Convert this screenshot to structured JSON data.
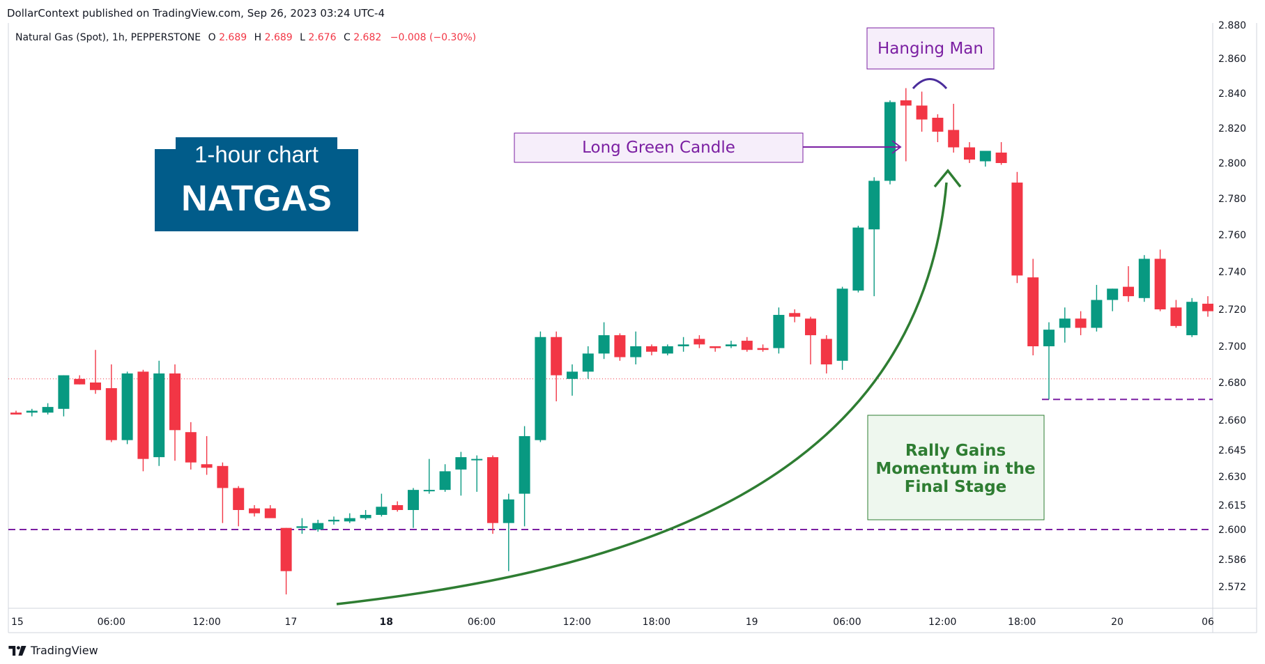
{
  "header": {
    "published": "DollarContext published on TradingView.com, Sep 26, 2023 03:24 UTC-4"
  },
  "legend": {
    "symbol": "Natural Gas (Spot), 1h, PEPPERSTONE",
    "o_label": "O",
    "o_value": "2.689",
    "h_label": "H",
    "h_value": "2.689",
    "l_label": "L",
    "l_value": "2.676",
    "c_label": "C",
    "c_value": "2.682",
    "change": "−0.008 (−0.30%)"
  },
  "title_box": {
    "line1": "1-hour chart",
    "line2": "NATGAS"
  },
  "annotations": {
    "hanging_man": "Hanging Man",
    "long_green": "Long Green Candle",
    "rally": [
      "Rally Gains",
      "Momentum in the",
      "Final Stage"
    ]
  },
  "footer": {
    "brand": "TradingView"
  },
  "colors": {
    "up": "#089981",
    "down": "#f23645",
    "title_bg": "#015c8a",
    "purple": "#7b1fa2",
    "green_note": "#2e7d32",
    "purple_box_bg": "#f6eefa"
  },
  "chart_data": {
    "type": "candlestick",
    "symbol": "Natural Gas (Spot)",
    "interval": "1h",
    "y_ticks": [
      "2.880",
      "2.860",
      "2.840",
      "2.820",
      "2.800",
      "2.780",
      "2.760",
      "2.740",
      "2.720",
      "2.700",
      "2.680",
      "2.660",
      "2.645",
      "2.630",
      "2.615",
      "2.600",
      "2.586",
      "2.572"
    ],
    "x_ticks": [
      {
        "label": "15",
        "bold": false,
        "bar": 0
      },
      {
        "label": "06:00",
        "bold": false,
        "bar": 6
      },
      {
        "label": "12:00",
        "bold": false,
        "bar": 12
      },
      {
        "label": "17",
        "bold": false,
        "bar": 17.3
      },
      {
        "label": "18",
        "bold": true,
        "bar": 23.3
      },
      {
        "label": "06:00",
        "bold": false,
        "bar": 29.3
      },
      {
        "label": "12:00",
        "bold": false,
        "bar": 35.3
      },
      {
        "label": "18:00",
        "bold": false,
        "bar": 40.3
      },
      {
        "label": "19",
        "bold": false,
        "bar": 46.3
      },
      {
        "label": "06:00",
        "bold": false,
        "bar": 52.3
      },
      {
        "label": "12:00",
        "bold": false,
        "bar": 58.3
      },
      {
        "label": "18:00",
        "bold": false,
        "bar": 63.3
      },
      {
        "label": "20",
        "bold": false,
        "bar": 69.3
      },
      {
        "label": "06",
        "bold": false,
        "bar": 75
      }
    ],
    "current_price": 2.682,
    "support_levels": [
      2.6,
      2.671
    ],
    "candles": [
      {
        "o": 2.664,
        "h": 2.665,
        "l": 2.663,
        "c": 2.663
      },
      {
        "o": 2.664,
        "h": 2.666,
        "l": 2.662,
        "c": 2.665
      },
      {
        "o": 2.664,
        "h": 2.669,
        "l": 2.663,
        "c": 2.667
      },
      {
        "o": 2.666,
        "h": 2.684,
        "l": 2.662,
        "c": 2.684
      },
      {
        "o": 2.682,
        "h": 2.684,
        "l": 2.679,
        "c": 2.679
      },
      {
        "o": 2.68,
        "h": 2.698,
        "l": 2.674,
        "c": 2.676
      },
      {
        "o": 2.677,
        "h": 2.69,
        "l": 2.649,
        "c": 2.65
      },
      {
        "o": 2.65,
        "h": 2.686,
        "l": 2.648,
        "c": 2.685
      },
      {
        "o": 2.686,
        "h": 2.687,
        "l": 2.633,
        "c": 2.64
      },
      {
        "o": 2.641,
        "h": 2.692,
        "l": 2.636,
        "c": 2.685
      },
      {
        "o": 2.685,
        "h": 2.69,
        "l": 2.639,
        "c": 2.655
      },
      {
        "o": 2.654,
        "h": 2.659,
        "l": 2.634,
        "c": 2.638
      },
      {
        "o": 2.637,
        "h": 2.652,
        "l": 2.631,
        "c": 2.635
      },
      {
        "o": 2.636,
        "h": 2.638,
        "l": 2.604,
        "c": 2.624
      },
      {
        "o": 2.624,
        "h": 2.625,
        "l": 2.602,
        "c": 2.612
      },
      {
        "o": 2.613,
        "h": 2.615,
        "l": 2.608,
        "c": 2.61
      },
      {
        "o": 2.613,
        "h": 2.615,
        "l": 2.608,
        "c": 2.607
      },
      {
        "o": 2.601,
        "h": 2.601,
        "l": 2.568,
        "c": 2.58
      },
      {
        "o": 2.601,
        "h": 2.607,
        "l": 2.598,
        "c": 2.602
      },
      {
        "o": 2.6,
        "h": 2.606,
        "l": 2.599,
        "c": 2.604
      },
      {
        "o": 2.605,
        "h": 2.608,
        "l": 2.603,
        "c": 2.606
      },
      {
        "o": 2.605,
        "h": 2.61,
        "l": 2.604,
        "c": 2.607
      },
      {
        "o": 2.607,
        "h": 2.612,
        "l": 2.606,
        "c": 2.609
      },
      {
        "o": 2.609,
        "h": 2.621,
        "l": 2.608,
        "c": 2.614
      },
      {
        "o": 2.615,
        "h": 2.617,
        "l": 2.611,
        "c": 2.612
      },
      {
        "o": 2.612,
        "h": 2.624,
        "l": 2.601,
        "c": 2.623
      },
      {
        "o": 2.623,
        "h": 2.64,
        "l": 2.621,
        "c": 2.623
      },
      {
        "o": 2.623,
        "h": 2.637,
        "l": 2.622,
        "c": 2.633
      },
      {
        "o": 2.634,
        "h": 2.644,
        "l": 2.62,
        "c": 2.641
      },
      {
        "o": 2.64,
        "h": 2.642,
        "l": 2.622,
        "c": 2.64
      },
      {
        "o": 2.641,
        "h": 2.642,
        "l": 2.598,
        "c": 2.604
      },
      {
        "o": 2.604,
        "h": 2.621,
        "l": 2.58,
        "c": 2.618
      },
      {
        "o": 2.621,
        "h": 2.657,
        "l": 2.602,
        "c": 2.652
      },
      {
        "o": 2.65,
        "h": 2.708,
        "l": 2.649,
        "c": 2.705
      },
      {
        "o": 2.705,
        "h": 2.708,
        "l": 2.67,
        "c": 2.684
      },
      {
        "o": 2.682,
        "h": 2.69,
        "l": 2.673,
        "c": 2.686
      },
      {
        "o": 2.686,
        "h": 2.7,
        "l": 2.682,
        "c": 2.696
      },
      {
        "o": 2.696,
        "h": 2.713,
        "l": 2.693,
        "c": 2.706
      },
      {
        "o": 2.706,
        "h": 2.707,
        "l": 2.692,
        "c": 2.694
      },
      {
        "o": 2.694,
        "h": 2.708,
        "l": 2.69,
        "c": 2.7
      },
      {
        "o": 2.7,
        "h": 2.701,
        "l": 2.695,
        "c": 2.697
      },
      {
        "o": 2.696,
        "h": 2.701,
        "l": 2.695,
        "c": 2.7
      },
      {
        "o": 2.7,
        "h": 2.705,
        "l": 2.697,
        "c": 2.701
      },
      {
        "o": 2.704,
        "h": 2.706,
        "l": 2.699,
        "c": 2.701
      },
      {
        "o": 2.7,
        "h": 2.7,
        "l": 2.697,
        "c": 2.699
      },
      {
        "o": 2.7,
        "h": 2.703,
        "l": 2.699,
        "c": 2.701
      },
      {
        "o": 2.703,
        "h": 2.705,
        "l": 2.697,
        "c": 2.698
      },
      {
        "o": 2.699,
        "h": 2.701,
        "l": 2.697,
        "c": 2.698
      },
      {
        "o": 2.699,
        "h": 2.721,
        "l": 2.696,
        "c": 2.717
      },
      {
        "o": 2.718,
        "h": 2.72,
        "l": 2.713,
        "c": 2.716
      },
      {
        "o": 2.715,
        "h": 2.716,
        "l": 2.69,
        "c": 2.706
      },
      {
        "o": 2.704,
        "h": 2.706,
        "l": 2.685,
        "c": 2.69
      },
      {
        "o": 2.692,
        "h": 2.732,
        "l": 2.687,
        "c": 2.731
      },
      {
        "o": 2.73,
        "h": 2.765,
        "l": 2.729,
        "c": 2.764
      },
      {
        "o": 2.763,
        "h": 2.792,
        "l": 2.727,
        "c": 2.79
      },
      {
        "o": 2.79,
        "h": 2.836,
        "l": 2.788,
        "c": 2.835
      },
      {
        "o": 2.836,
        "h": 2.843,
        "l": 2.801,
        "c": 2.833
      },
      {
        "o": 2.833,
        "h": 2.841,
        "l": 2.818,
        "c": 2.825
      },
      {
        "o": 2.826,
        "h": 2.828,
        "l": 2.812,
        "c": 2.818
      },
      {
        "o": 2.819,
        "h": 2.834,
        "l": 2.806,
        "c": 2.809
      },
      {
        "o": 2.809,
        "h": 2.812,
        "l": 2.8,
        "c": 2.802
      },
      {
        "o": 2.801,
        "h": 2.806,
        "l": 2.798,
        "c": 2.807
      },
      {
        "o": 2.806,
        "h": 2.812,
        "l": 2.799,
        "c": 2.8
      },
      {
        "o": 2.789,
        "h": 2.795,
        "l": 2.734,
        "c": 2.738
      },
      {
        "o": 2.737,
        "h": 2.747,
        "l": 2.695,
        "c": 2.7
      },
      {
        "o": 2.7,
        "h": 2.713,
        "l": 2.671,
        "c": 2.709
      },
      {
        "o": 2.71,
        "h": 2.721,
        "l": 2.702,
        "c": 2.715
      },
      {
        "o": 2.715,
        "h": 2.719,
        "l": 2.706,
        "c": 2.71
      },
      {
        "o": 2.71,
        "h": 2.733,
        "l": 2.708,
        "c": 2.725
      },
      {
        "o": 2.725,
        "h": 2.731,
        "l": 2.719,
        "c": 2.731
      },
      {
        "o": 2.732,
        "h": 2.743,
        "l": 2.724,
        "c": 2.727
      },
      {
        "o": 2.726,
        "h": 2.749,
        "l": 2.724,
        "c": 2.747
      },
      {
        "o": 2.747,
        "h": 2.752,
        "l": 2.719,
        "c": 2.72
      },
      {
        "o": 2.721,
        "h": 2.725,
        "l": 2.71,
        "c": 2.711
      },
      {
        "o": 2.706,
        "h": 2.726,
        "l": 2.705,
        "c": 2.724
      },
      {
        "o": 2.723,
        "h": 2.727,
        "l": 2.716,
        "c": 2.719
      }
    ]
  }
}
